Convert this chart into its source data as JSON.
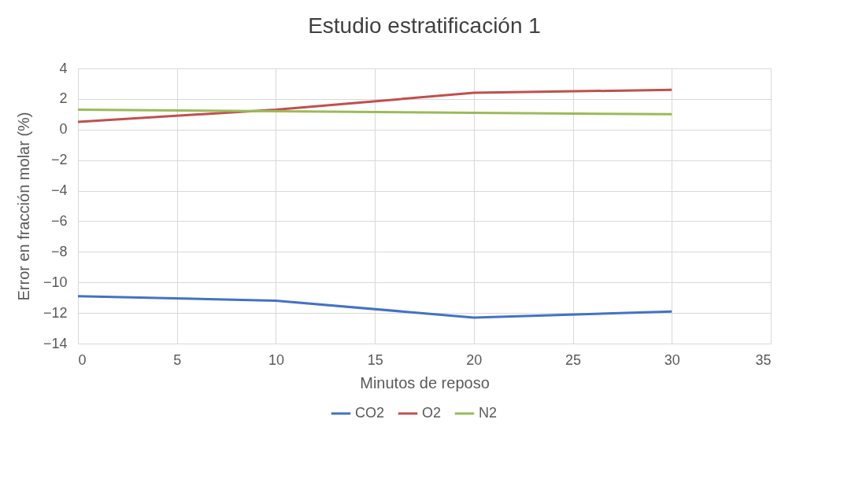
{
  "chart_data": {
    "type": "line",
    "title": "Estudio estratificación 1",
    "xlabel": "Minutos de reposo",
    "ylabel": "Error en fracción molar (%)",
    "x": [
      0,
      10,
      20,
      30
    ],
    "series": [
      {
        "name": "CO2",
        "color": "#4472c4",
        "values": [
          -10.9,
          -11.2,
          -12.3,
          -11.9
        ]
      },
      {
        "name": "O2",
        "color": "#c0504d",
        "values": [
          0.5,
          1.3,
          2.4,
          2.6
        ]
      },
      {
        "name": "N2",
        "color": "#9bbb59",
        "values": [
          1.3,
          1.2,
          1.1,
          1.0
        ]
      }
    ],
    "xlim": [
      0,
      35
    ],
    "xticks": [
      0,
      5,
      10,
      15,
      20,
      25,
      30,
      35
    ],
    "ylim": [
      -14,
      4
    ],
    "yticks": [
      -14,
      -12,
      -10,
      -8,
      -6,
      -4,
      -2,
      0,
      2,
      4
    ],
    "grid": true,
    "legend": "bottom",
    "marker": "none",
    "line_style": "solid"
  }
}
